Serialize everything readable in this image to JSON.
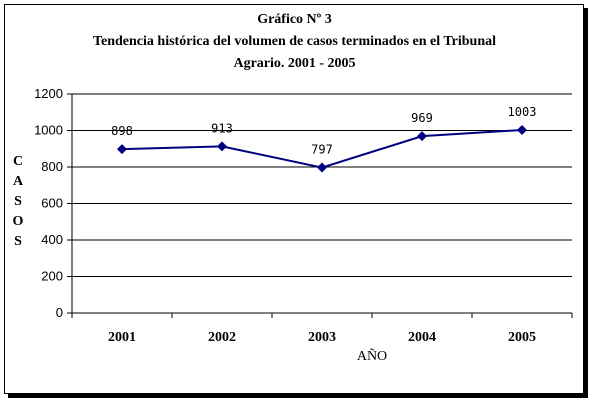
{
  "chart_data": {
    "type": "line",
    "title_lines": [
      "Gráfico Nº 3",
      "Tendencia histórica del volumen de casos terminados en el Tribunal",
      "Agrario. 2001 - 2005"
    ],
    "xlabel": "AÑO",
    "ylabel": "CASOS",
    "categories": [
      "2001",
      "2002",
      "2003",
      "2004",
      "2005"
    ],
    "values": [
      898,
      913,
      797,
      969,
      1003
    ],
    "data_labels": [
      "898",
      "913",
      "797",
      "969",
      "1003"
    ],
    "ylim": [
      0,
      1200
    ],
    "yticks": [
      "0",
      "200",
      "400",
      "600",
      "800",
      "1000",
      "1200"
    ],
    "grid": true,
    "legend": "none",
    "line_color": "#000080"
  }
}
